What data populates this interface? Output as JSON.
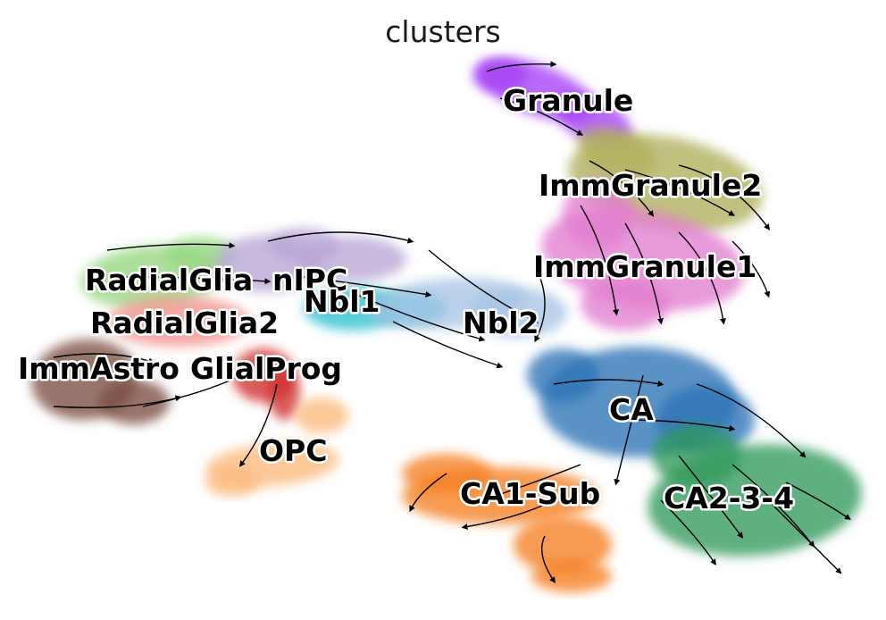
{
  "chart_data": {
    "type": "scatter",
    "title": "clusters",
    "xlabel": "",
    "ylabel": "",
    "grid": false,
    "legend": "on data",
    "overlay": "velocity stream arrows",
    "clusters": [
      {
        "name": "Granule",
        "color": "#a53ff5"
      },
      {
        "name": "ImmGranule2",
        "color": "#aeb05b"
      },
      {
        "name": "ImmGranule1",
        "color": "#e17dd0"
      },
      {
        "name": "RadialGlia",
        "color": "#96d680"
      },
      {
        "name": "nIPC",
        "color": "#b9a7d6"
      },
      {
        "name": "Nbl1",
        "color": "#2cbfd0"
      },
      {
        "name": "Nbl2",
        "color": "#a8c4e6"
      },
      {
        "name": "RadialGlia2",
        "color": "#f2928c"
      },
      {
        "name": "ImmAstro",
        "color": "#7b4d42"
      },
      {
        "name": "GlialProg",
        "color": "#cf2a2a"
      },
      {
        "name": "OPC",
        "color": "#fbb97a"
      },
      {
        "name": "CA",
        "color": "#2a73b6"
      },
      {
        "name": "CA1-Sub",
        "color": "#f57f1f"
      },
      {
        "name": "CA2-3-4",
        "color": "#2f9a5c"
      }
    ],
    "labels": [
      "Granule",
      "ImmGranule2",
      "ImmGranule1",
      "RadialGlia",
      "nIPC",
      "Nbl1",
      "Nbl2",
      "RadialGlia2",
      "ImmAstro",
      "GlialProg",
      "OPC",
      "CA",
      "CA1-Sub",
      "CA2-3-4"
    ]
  }
}
